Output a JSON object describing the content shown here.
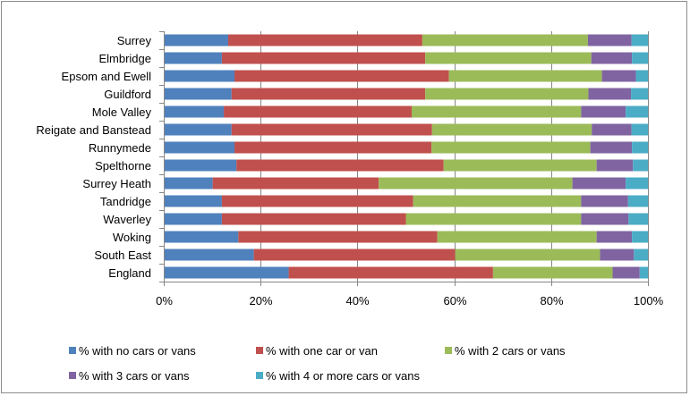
{
  "chart_data": {
    "type": "bar",
    "orientation": "horizontal",
    "stacked": "percent",
    "categories": [
      "Surrey",
      "Elmbridge",
      "Epsom and Ewell",
      "Guildford",
      "Mole Valley",
      "Reigate and Banstead",
      "Runnymede",
      "Spelthorne",
      "Surrey Heath",
      "Tandridge",
      "Waverley",
      "Woking",
      "South East",
      "England"
    ],
    "series": [
      {
        "name": "% with no cars or vans",
        "color": "#4f81bd",
        "values": [
          13.3,
          12.0,
          14.6,
          14.0,
          12.4,
          14.0,
          14.6,
          15.0,
          10.1,
          12.0,
          12.0,
          15.4,
          18.6,
          25.8
        ]
      },
      {
        "name": "% with one car or van",
        "color": "#c0504d",
        "values": [
          40.1,
          42.0,
          44.3,
          40.0,
          38.8,
          41.4,
          40.7,
          42.8,
          34.3,
          39.5,
          38.0,
          41.1,
          41.6,
          42.2
        ]
      },
      {
        "name": "% with 2 cars or vans",
        "color": "#9bbb59",
        "values": [
          34.2,
          34.3,
          31.6,
          33.7,
          35.0,
          33.0,
          32.8,
          31.6,
          40.0,
          34.7,
          36.2,
          32.9,
          29.9,
          24.7
        ]
      },
      {
        "name": "% with 3 cars or vans",
        "color": "#8064a2",
        "values": [
          9.0,
          8.4,
          7.0,
          8.8,
          9.2,
          8.2,
          8.6,
          7.5,
          11.0,
          9.7,
          9.8,
          7.3,
          7.0,
          5.6
        ]
      },
      {
        "name": "% with 4 or more cars or vans",
        "color": "#4bacc6",
        "values": [
          3.4,
          3.3,
          2.5,
          3.5,
          4.6,
          3.4,
          3.3,
          3.1,
          4.6,
          4.1,
          4.0,
          3.3,
          2.9,
          1.7
        ]
      }
    ],
    "xlim": [
      0,
      100
    ],
    "x_ticks": [
      "0%",
      "20%",
      "40%",
      "60%",
      "80%",
      "100%"
    ],
    "grid": true,
    "legend_position": "bottom",
    "title": "",
    "xlabel": "",
    "ylabel": ""
  }
}
